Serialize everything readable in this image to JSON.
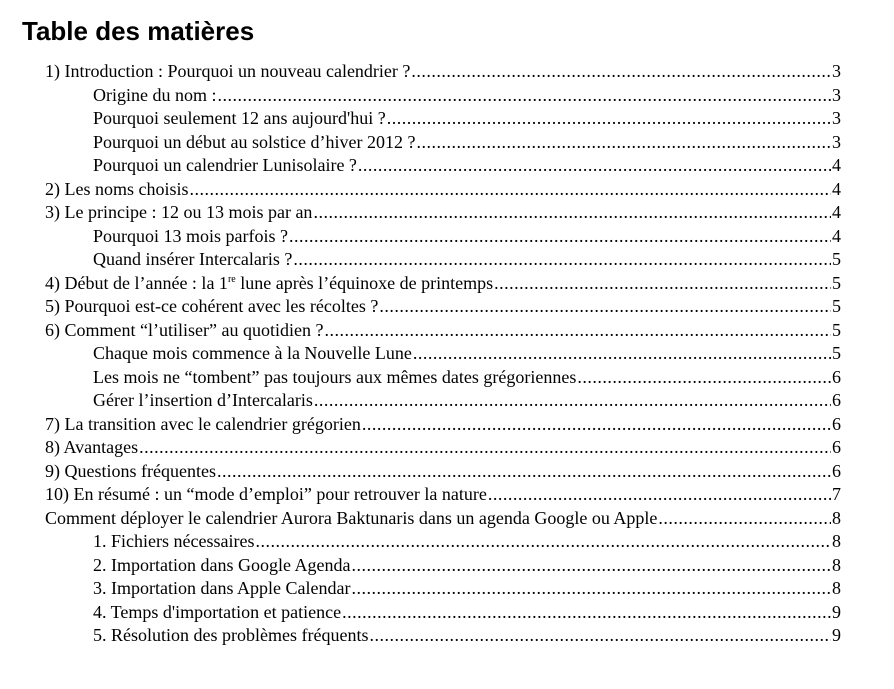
{
  "title": "Table des matières",
  "entries": [
    {
      "level": 1,
      "text": "1) Introduction : Pourquoi un nouveau calendrier ?",
      "page": "3"
    },
    {
      "level": 2,
      "text": "Origine du nom :",
      "page": "3"
    },
    {
      "level": 2,
      "text": "Pourquoi seulement 12 ans aujourd'hui ?",
      "page": "3"
    },
    {
      "level": 2,
      "text": "Pourquoi un début au solstice d’hiver 2012 ?",
      "page": "3"
    },
    {
      "level": 2,
      "text": "Pourquoi un calendrier Lunisolaire ?",
      "page": "4"
    },
    {
      "level": 1,
      "text": "2) Les noms choisis",
      "page": "4"
    },
    {
      "level": 1,
      "text": "3) Le principe : 12 ou 13 mois par an",
      "page": "4"
    },
    {
      "level": 2,
      "text": "Pourquoi 13 mois parfois ?",
      "page": "4"
    },
    {
      "level": 2,
      "text": "Quand insérer Intercalaris ?",
      "page": "5"
    },
    {
      "level": 1,
      "text": "4) Début de l’année : la 1",
      "sup": "re",
      "text_after": " lune après l’équinoxe de printemps",
      "page": "5"
    },
    {
      "level": 1,
      "text": "5) Pourquoi est-ce cohérent avec les récoltes ?",
      "page": "5"
    },
    {
      "level": 1,
      "text": "6) Comment “l’utiliser” au quotidien ?",
      "page": "5"
    },
    {
      "level": 2,
      "text": "Chaque mois commence à la Nouvelle Lune",
      "page": "5"
    },
    {
      "level": 2,
      "text": "Les mois ne “tombent” pas toujours aux mêmes dates grégoriennes",
      "page": "6"
    },
    {
      "level": 2,
      "text": "Gérer l’insertion d’Intercalaris",
      "page": "6"
    },
    {
      "level": 1,
      "text": "7) La transition avec le calendrier grégorien",
      "page": "6"
    },
    {
      "level": 1,
      "text": "8) Avantages",
      "page": "6"
    },
    {
      "level": 1,
      "text": "9) Questions fréquentes",
      "page": "6"
    },
    {
      "level": 1,
      "text": "10) En résumé : un “mode d’emploi” pour retrouver la nature",
      "page": "7"
    },
    {
      "level": 1,
      "text": "Comment déployer le calendrier Aurora Baktunaris dans un agenda Google ou Apple",
      "page": "8"
    },
    {
      "level": 2,
      "text": "1. Fichiers nécessaires",
      "page": "8"
    },
    {
      "level": 2,
      "text": "2. Importation dans Google Agenda",
      "page": "8"
    },
    {
      "level": 2,
      "text": "3. Importation dans Apple Calendar",
      "page": "8"
    },
    {
      "level": 2,
      "text": "4. Temps d'importation et patience",
      "page": "9"
    },
    {
      "level": 2,
      "text": "5. Résolution des problèmes fréquents",
      "page": "9"
    }
  ]
}
